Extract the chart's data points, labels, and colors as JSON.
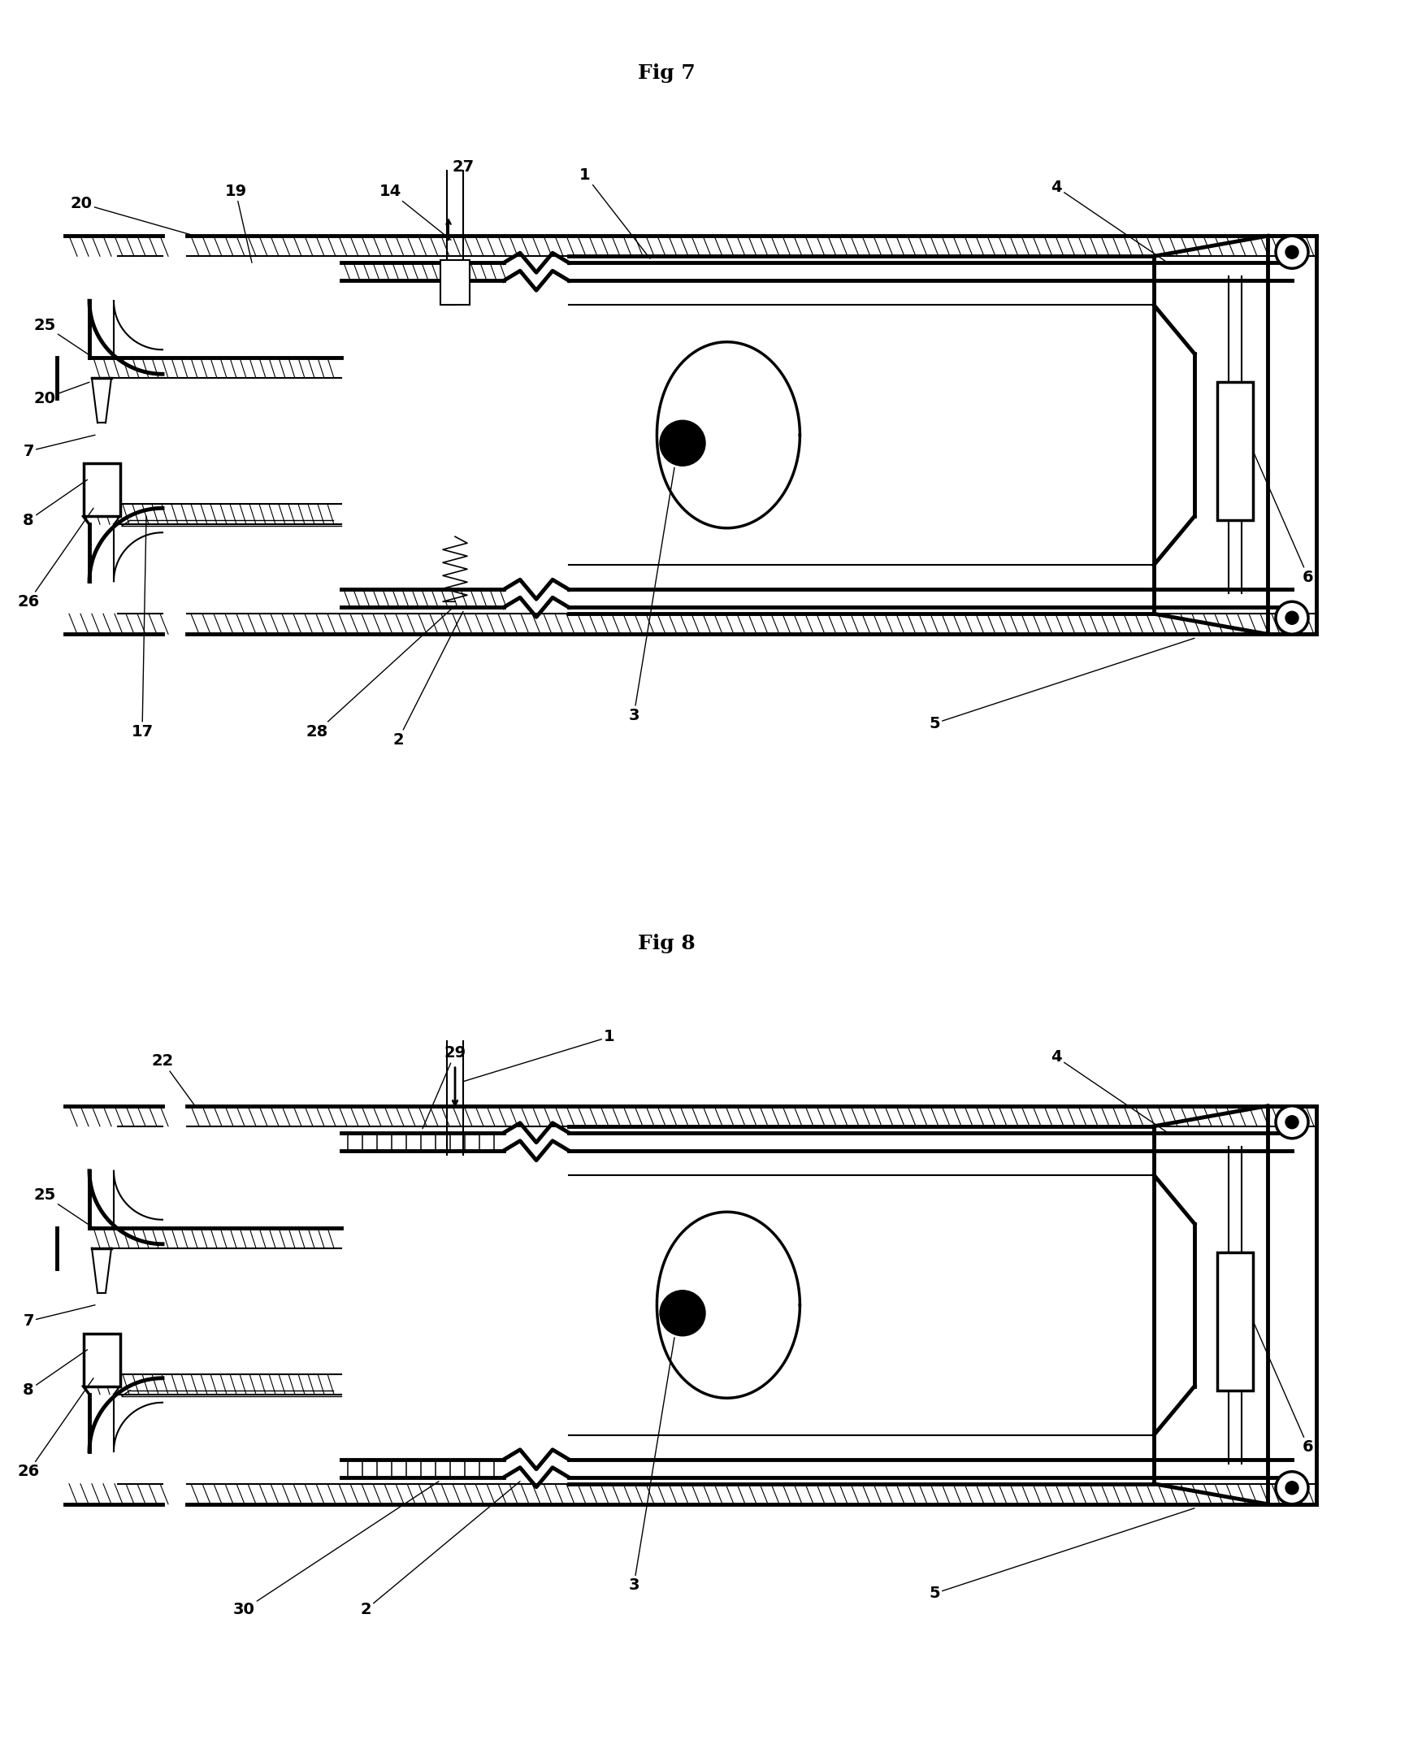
{
  "fig7_title": "Fig 7",
  "fig8_title": "Fig 8",
  "background_color": "#ffffff",
  "title_fontsize": 18,
  "label_fontsize": 14
}
